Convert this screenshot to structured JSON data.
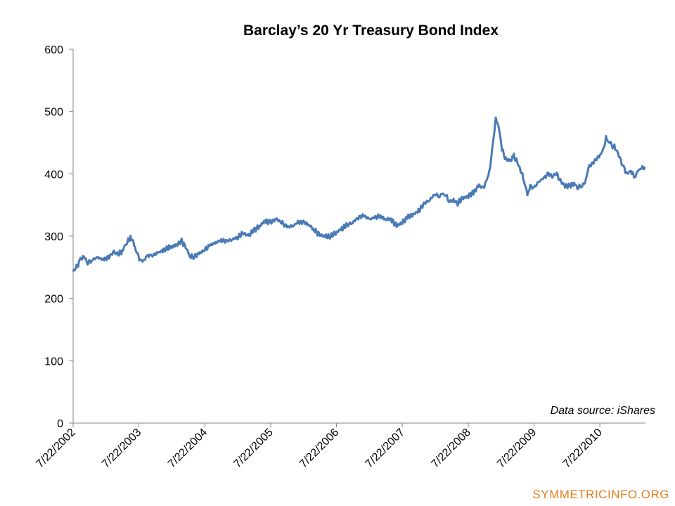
{
  "chart_data": {
    "type": "line",
    "title": "Barclay’s 20 Yr Treasury Bond Index",
    "xlabel": "",
    "ylabel": "",
    "ylim": [
      0,
      600
    ],
    "yticks": [
      0,
      100,
      200,
      300,
      400,
      500,
      600
    ],
    "xticks": [
      "7/22/2002",
      "7/22/2003",
      "7/22/2004",
      "7/22/2005",
      "7/22/2006",
      "7/22/2007",
      "7/22/2008",
      "7/22/2009",
      "7/22/2010"
    ],
    "xlim": [
      "7/22/2002",
      "2011-04-01"
    ],
    "grid": false,
    "series": [
      {
        "color": "#4a7ab5",
        "points": [
          [
            "2002-07-22",
            243
          ],
          [
            "2002-08-10",
            250
          ],
          [
            "2002-09-01",
            262
          ],
          [
            "2002-09-20",
            268
          ],
          [
            "2002-10-10",
            257
          ],
          [
            "2002-11-01",
            261
          ],
          [
            "2002-12-01",
            266
          ],
          [
            "2003-01-10",
            262
          ],
          [
            "2003-02-10",
            268
          ],
          [
            "2003-03-05",
            275
          ],
          [
            "2003-03-25",
            270
          ],
          [
            "2003-04-20",
            276
          ],
          [
            "2003-05-15",
            290
          ],
          [
            "2003-06-10",
            298
          ],
          [
            "2003-06-25",
            285
          ],
          [
            "2003-07-15",
            270
          ],
          [
            "2003-08-01",
            260
          ],
          [
            "2003-08-20",
            262
          ],
          [
            "2003-09-10",
            270
          ],
          [
            "2003-10-01",
            268
          ],
          [
            "2003-11-01",
            273
          ],
          [
            "2003-12-01",
            277
          ],
          [
            "2004-01-10",
            282
          ],
          [
            "2004-02-10",
            285
          ],
          [
            "2004-03-15",
            292
          ],
          [
            "2004-04-01",
            285
          ],
          [
            "2004-05-01",
            268
          ],
          [
            "2004-05-20",
            266
          ],
          [
            "2004-06-20",
            272
          ],
          [
            "2004-07-22",
            278
          ],
          [
            "2004-08-20",
            285
          ],
          [
            "2004-09-20",
            290
          ],
          [
            "2004-10-20",
            293
          ],
          [
            "2004-11-20",
            292
          ],
          [
            "2004-12-20",
            295
          ],
          [
            "2005-01-20",
            298
          ],
          [
            "2005-02-20",
            305
          ],
          [
            "2005-03-20",
            300
          ],
          [
            "2005-04-20",
            310
          ],
          [
            "2005-05-20",
            315
          ],
          [
            "2005-06-20",
            325
          ],
          [
            "2005-07-22",
            322
          ],
          [
            "2005-08-20",
            328
          ],
          [
            "2005-09-20",
            322
          ],
          [
            "2005-10-20",
            315
          ],
          [
            "2005-11-20",
            316
          ],
          [
            "2005-12-20",
            322
          ],
          [
            "2006-01-20",
            323
          ],
          [
            "2006-02-20",
            318
          ],
          [
            "2006-03-20",
            310
          ],
          [
            "2006-04-20",
            302
          ],
          [
            "2006-05-20",
            299
          ],
          [
            "2006-06-20",
            300
          ],
          [
            "2006-07-22",
            306
          ],
          [
            "2006-08-20",
            312
          ],
          [
            "2006-09-20",
            318
          ],
          [
            "2006-10-20",
            322
          ],
          [
            "2006-11-20",
            330
          ],
          [
            "2006-12-20",
            333
          ],
          [
            "2007-01-20",
            327
          ],
          [
            "2007-02-20",
            330
          ],
          [
            "2007-03-20",
            332
          ],
          [
            "2007-04-20",
            327
          ],
          [
            "2007-05-20",
            328
          ],
          [
            "2007-06-20",
            316
          ],
          [
            "2007-07-22",
            322
          ],
          [
            "2007-08-20",
            330
          ],
          [
            "2007-09-20",
            335
          ],
          [
            "2007-10-20",
            340
          ],
          [
            "2007-11-20",
            352
          ],
          [
            "2007-12-20",
            358
          ],
          [
            "2008-01-20",
            368
          ],
          [
            "2008-02-10",
            363
          ],
          [
            "2008-03-01",
            368
          ],
          [
            "2008-03-20",
            365
          ],
          [
            "2008-04-10",
            355
          ],
          [
            "2008-05-01",
            358
          ],
          [
            "2008-05-20",
            352
          ],
          [
            "2008-06-20",
            360
          ],
          [
            "2008-07-22",
            365
          ],
          [
            "2008-08-20",
            370
          ],
          [
            "2008-09-20",
            382
          ],
          [
            "2008-10-10",
            376
          ],
          [
            "2008-11-01",
            388
          ],
          [
            "2008-11-20",
            410
          ],
          [
            "2008-12-10",
            460
          ],
          [
            "2008-12-22",
            490
          ],
          [
            "2009-01-10",
            470
          ],
          [
            "2009-01-25",
            440
          ],
          [
            "2009-02-10",
            425
          ],
          [
            "2009-03-10",
            420
          ],
          [
            "2009-04-01",
            428
          ],
          [
            "2009-04-20",
            418
          ],
          [
            "2009-05-10",
            405
          ],
          [
            "2009-06-01",
            385
          ],
          [
            "2009-06-15",
            365
          ],
          [
            "2009-07-01",
            380
          ],
          [
            "2009-07-22",
            378
          ],
          [
            "2009-08-20",
            388
          ],
          [
            "2009-09-20",
            395
          ],
          [
            "2009-10-10",
            400
          ],
          [
            "2009-11-01",
            395
          ],
          [
            "2009-11-20",
            402
          ],
          [
            "2009-12-10",
            392
          ],
          [
            "2010-01-01",
            382
          ],
          [
            "2010-02-01",
            380
          ],
          [
            "2010-03-01",
            385
          ],
          [
            "2010-03-20",
            378
          ],
          [
            "2010-04-10",
            380
          ],
          [
            "2010-05-01",
            385
          ],
          [
            "2010-05-20",
            410
          ],
          [
            "2010-06-20",
            420
          ],
          [
            "2010-07-22",
            430
          ],
          [
            "2010-08-10",
            438
          ],
          [
            "2010-08-25",
            458
          ],
          [
            "2010-09-10",
            452
          ],
          [
            "2010-10-01",
            445
          ],
          [
            "2010-10-20",
            440
          ],
          [
            "2010-11-10",
            425
          ],
          [
            "2010-12-01",
            410
          ],
          [
            "2010-12-20",
            400
          ],
          [
            "2011-01-10",
            405
          ],
          [
            "2011-02-01",
            395
          ],
          [
            "2011-02-20",
            405
          ],
          [
            "2011-03-10",
            410
          ],
          [
            "2011-04-01",
            410
          ]
        ]
      }
    ],
    "annotation": "Data source: iShares"
  },
  "watermark": "SYMMETRICINFO.ORG",
  "colors": {
    "line": "#4a7ab5",
    "axis": "#868686",
    "watermark": "#e87d1e"
  }
}
